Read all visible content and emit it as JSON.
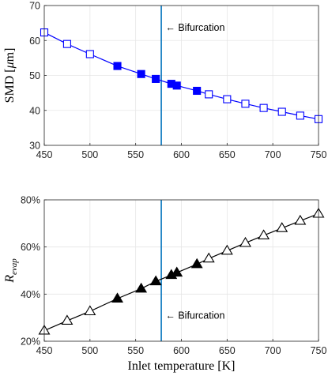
{
  "chart_data": [
    {
      "type": "line",
      "title": "",
      "xlabel": "",
      "ylabel": "SMD [μm]",
      "ylabel_parts": {
        "main": "SMD [",
        "mu": "μ",
        "unit": "m]"
      },
      "xlim": [
        450,
        750
      ],
      "ylim": [
        30,
        70
      ],
      "xticks": [
        "450",
        "500",
        "550",
        "600",
        "650",
        "700",
        "750"
      ],
      "yticks": [
        "30",
        "40",
        "50",
        "60",
        "70"
      ],
      "grid": true,
      "marker": "square",
      "line_color": "#0000ff",
      "points": [
        {
          "x": 450,
          "y": 62.3,
          "filled": false
        },
        {
          "x": 475,
          "y": 59.0,
          "filled": false
        },
        {
          "x": 500,
          "y": 56.1,
          "filled": false
        },
        {
          "x": 530,
          "y": 52.7,
          "filled": true
        },
        {
          "x": 556,
          "y": 50.4,
          "filled": true
        },
        {
          "x": 572,
          "y": 49.0,
          "filled": true
        },
        {
          "x": 589,
          "y": 47.6,
          "filled": true
        },
        {
          "x": 595,
          "y": 47.1,
          "filled": true
        },
        {
          "x": 617,
          "y": 45.6,
          "filled": true
        },
        {
          "x": 630,
          "y": 44.6,
          "filled": false
        },
        {
          "x": 650,
          "y": 43.2,
          "filled": false
        },
        {
          "x": 670,
          "y": 41.9,
          "filled": false
        },
        {
          "x": 690,
          "y": 40.7,
          "filled": false
        },
        {
          "x": 710,
          "y": 39.6,
          "filled": false
        },
        {
          "x": 730,
          "y": 38.5,
          "filled": false
        },
        {
          "x": 750,
          "y": 37.5,
          "filled": false
        }
      ],
      "bifurcation_x": 578,
      "bifurcation_color": "#0072bd",
      "annotation": {
        "text": "← Bifurcation",
        "x": 580,
        "y": 63.8
      }
    },
    {
      "type": "line",
      "title": "",
      "xlabel": "Inlet temperature [K]",
      "ylabel": "R_evap",
      "ylabel_parts": {
        "main": "R",
        "sub": "evap"
      },
      "xlim": [
        450,
        750
      ],
      "ylim": [
        0.2,
        0.8
      ],
      "xticks": [
        "450",
        "500",
        "550",
        "600",
        "650",
        "700",
        "750"
      ],
      "yticks": [
        "20%",
        "40%",
        "60%",
        "80%"
      ],
      "grid": true,
      "marker": "triangle",
      "line_color": "#000000",
      "points": [
        {
          "x": 450,
          "y": 0.245,
          "filled": false
        },
        {
          "x": 475,
          "y": 0.287,
          "filled": false
        },
        {
          "x": 500,
          "y": 0.327,
          "filled": false
        },
        {
          "x": 530,
          "y": 0.381,
          "filled": true
        },
        {
          "x": 556,
          "y": 0.423,
          "filled": true
        },
        {
          "x": 572,
          "y": 0.454,
          "filled": true
        },
        {
          "x": 589,
          "y": 0.481,
          "filled": true
        },
        {
          "x": 595,
          "y": 0.491,
          "filled": true
        },
        {
          "x": 617,
          "y": 0.527,
          "filled": true
        },
        {
          "x": 630,
          "y": 0.551,
          "filled": false
        },
        {
          "x": 650,
          "y": 0.584,
          "filled": false
        },
        {
          "x": 670,
          "y": 0.617,
          "filled": false
        },
        {
          "x": 690,
          "y": 0.649,
          "filled": false
        },
        {
          "x": 710,
          "y": 0.68,
          "filled": false
        },
        {
          "x": 730,
          "y": 0.711,
          "filled": false
        },
        {
          "x": 750,
          "y": 0.741,
          "filled": false
        }
      ],
      "bifurcation_x": 578,
      "bifurcation_color": "#0072bd",
      "annotation": {
        "text": "← Bifurcation",
        "x": 580,
        "y": 0.31
      }
    }
  ]
}
